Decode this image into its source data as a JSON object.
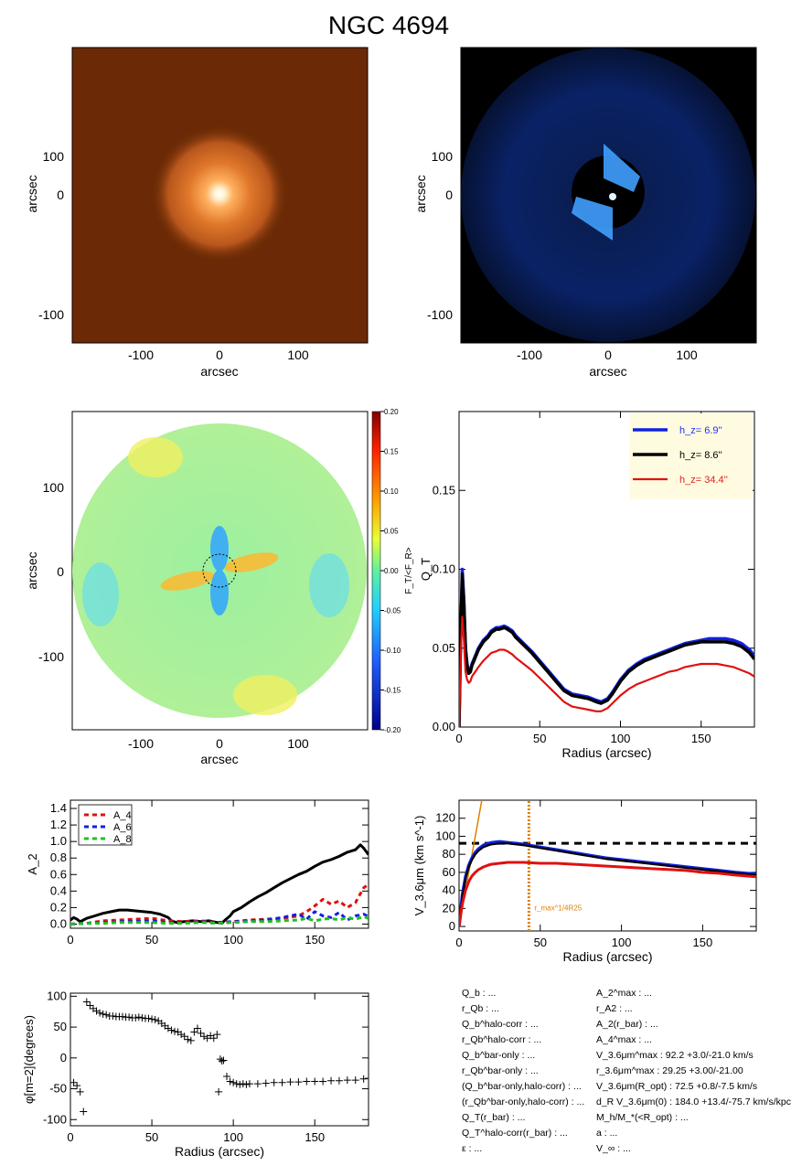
{
  "title": "NGC 4694",
  "panels": {
    "image1": {
      "xlabel": "arcsec",
      "ylabel": "arcsec",
      "xticks": [
        "-100",
        "0",
        "100"
      ],
      "yticks": [
        "100",
        "0",
        "-100"
      ]
    },
    "image2": {
      "xlabel": "arcsec",
      "ylabel": "arcsec",
      "xticks": [
        "-100",
        "0",
        "100"
      ],
      "yticks": [
        "100",
        "0",
        "-100"
      ]
    },
    "map": {
      "xlabel": "arcsec",
      "ylabel": "arcsec",
      "xticks": [
        "-100",
        "0",
        "100"
      ],
      "yticks": [
        "100",
        "0",
        "-100"
      ],
      "colorbar_ticks": [
        "0.20",
        "0.15",
        "0.10",
        "0.05",
        "0.00",
        "-0.05",
        "-0.10",
        "-0.15",
        "-0.20"
      ],
      "colorbar_label": "F_T/<F_R>"
    }
  },
  "params_left": [
    "Q_b : ...",
    "r_Qb : ...",
    "Q_b^halo-corr : ...",
    "r_Qb^halo-corr : ...",
    "Q_b^bar-only : ...",
    "r_Qb^bar-only : ...",
    "(Q_b^bar-only,halo-corr) : ...",
    "(r_Qb^bar-only,halo-corr) : ...",
    "Q_T(r_bar) : ...",
    "Q_T^halo-corr(r_bar) : ...",
    "ε : ..."
  ],
  "params_right": [
    "A_2^max : ...",
    "r_A2 : ...",
    "A_2(r_bar) : ...",
    "A_4^max : ...",
    "V_3.6μm^max : 92.2 +3.0/-21.0 km/s",
    "r_3.6μm^max : 29.25 +3.00/-21.00",
    "V_3.6μm(R_opt) : 72.5 +0.8/-7.5 km/s",
    "d_R V_3.6μm(0) : 184.0 +13.4/-75.7 km/s/kpc",
    "M_h/M_*(<R_opt) : ...",
    "a : ...",
    "V_∞ : ..."
  ],
  "chart_data": [
    {
      "type": "line",
      "title": "",
      "xlabel": "Radius (arcsec)",
      "ylabel": "Q_T",
      "xlim": [
        0,
        183
      ],
      "ylim": [
        0,
        0.2
      ],
      "xticks": [
        0,
        50,
        100,
        150
      ],
      "yticks": [
        0.0,
        0.05,
        0.1,
        0.15
      ],
      "legend": "top-right",
      "series": [
        {
          "name": "h_z= 6.9''",
          "color": "#1020e0",
          "width": 3.5,
          "label_color": "#2030ff",
          "x": [
            0,
            1,
            2,
            3,
            4,
            5,
            6,
            7,
            8,
            10,
            12,
            15,
            18,
            20,
            23,
            25,
            28,
            30,
            33,
            35,
            40,
            45,
            50,
            55,
            60,
            65,
            70,
            75,
            80,
            85,
            88,
            92,
            95,
            100,
            105,
            110,
            115,
            120,
            125,
            130,
            135,
            140,
            145,
            150,
            155,
            160,
            165,
            170,
            175,
            180,
            183
          ],
          "y": [
            0,
            0.06,
            0.1,
            0.08,
            0.05,
            0.04,
            0.035,
            0.036,
            0.04,
            0.045,
            0.05,
            0.055,
            0.058,
            0.061,
            0.063,
            0.063,
            0.064,
            0.063,
            0.061,
            0.058,
            0.053,
            0.048,
            0.042,
            0.036,
            0.03,
            0.024,
            0.021,
            0.02,
            0.019,
            0.017,
            0.016,
            0.018,
            0.022,
            0.03,
            0.036,
            0.04,
            0.043,
            0.045,
            0.047,
            0.049,
            0.051,
            0.053,
            0.054,
            0.055,
            0.056,
            0.056,
            0.056,
            0.055,
            0.053,
            0.049,
            0.045
          ]
        },
        {
          "name": "h_z=  8.6''",
          "color": "#000000",
          "width": 3.5,
          "label_color": "#000000",
          "x": [
            0,
            1,
            2,
            3,
            4,
            5,
            6,
            7,
            8,
            10,
            12,
            15,
            18,
            20,
            23,
            25,
            28,
            30,
            33,
            35,
            40,
            45,
            50,
            55,
            60,
            65,
            70,
            75,
            80,
            85,
            88,
            92,
            95,
            100,
            105,
            110,
            115,
            120,
            125,
            130,
            135,
            140,
            145,
            150,
            155,
            160,
            165,
            170,
            175,
            180,
            183
          ],
          "y": [
            0,
            0.058,
            0.097,
            0.078,
            0.048,
            0.038,
            0.034,
            0.035,
            0.039,
            0.044,
            0.049,
            0.054,
            0.057,
            0.06,
            0.062,
            0.062,
            0.063,
            0.062,
            0.06,
            0.057,
            0.052,
            0.047,
            0.041,
            0.035,
            0.029,
            0.023,
            0.02,
            0.019,
            0.018,
            0.016,
            0.015,
            0.017,
            0.021,
            0.029,
            0.035,
            0.039,
            0.042,
            0.044,
            0.046,
            0.048,
            0.05,
            0.052,
            0.053,
            0.054,
            0.054,
            0.054,
            0.054,
            0.053,
            0.051,
            0.047,
            0.043
          ]
        },
        {
          "name": "h_z= 34.4''",
          "color": "#e01010",
          "width": 2.2,
          "label_color": "#e02020",
          "x": [
            0,
            1,
            2,
            3,
            4,
            5,
            6,
            7,
            8,
            10,
            12,
            15,
            18,
            20,
            23,
            25,
            28,
            30,
            33,
            35,
            40,
            45,
            50,
            55,
            60,
            65,
            70,
            75,
            80,
            85,
            88,
            92,
            95,
            100,
            105,
            110,
            115,
            120,
            125,
            130,
            135,
            140,
            145,
            150,
            155,
            160,
            165,
            170,
            175,
            180,
            183
          ],
          "y": [
            0,
            0.045,
            0.07,
            0.055,
            0.035,
            0.03,
            0.028,
            0.029,
            0.032,
            0.035,
            0.038,
            0.042,
            0.045,
            0.047,
            0.048,
            0.049,
            0.049,
            0.048,
            0.046,
            0.044,
            0.04,
            0.036,
            0.031,
            0.026,
            0.021,
            0.016,
            0.013,
            0.012,
            0.011,
            0.01,
            0.01,
            0.012,
            0.015,
            0.02,
            0.024,
            0.027,
            0.029,
            0.031,
            0.033,
            0.035,
            0.036,
            0.038,
            0.039,
            0.04,
            0.04,
            0.04,
            0.039,
            0.038,
            0.036,
            0.034,
            0.032
          ]
        }
      ]
    },
    {
      "type": "line",
      "title": "",
      "xlabel": "",
      "ylabel": "A_2",
      "xlim": [
        0,
        183
      ],
      "ylim": [
        -0.05,
        1.5
      ],
      "xticks": [
        0,
        50,
        100,
        150
      ],
      "yticks": [
        0.0,
        0.2,
        0.4,
        0.6,
        0.8,
        1.0,
        1.2,
        1.4
      ],
      "legend": "top-left",
      "series": [
        {
          "name": "A_2",
          "color": "#000000",
          "width": 3,
          "dash": "",
          "x": [
            0,
            2,
            4,
            6,
            8,
            10,
            15,
            20,
            25,
            30,
            35,
            40,
            45,
            50,
            55,
            60,
            62,
            65,
            70,
            75,
            80,
            85,
            90,
            93,
            95,
            98,
            100,
            105,
            110,
            115,
            120,
            125,
            130,
            135,
            140,
            145,
            150,
            155,
            160,
            165,
            170,
            175,
            178,
            180,
            183
          ],
          "y": [
            0.05,
            0.08,
            0.06,
            0.03,
            0.05,
            0.07,
            0.1,
            0.13,
            0.15,
            0.17,
            0.17,
            0.16,
            0.15,
            0.14,
            0.12,
            0.08,
            0.04,
            0.02,
            0.03,
            0.04,
            0.03,
            0.04,
            0.02,
            0.01,
            0.05,
            0.1,
            0.15,
            0.2,
            0.27,
            0.33,
            0.38,
            0.44,
            0.5,
            0.55,
            0.6,
            0.64,
            0.7,
            0.75,
            0.78,
            0.82,
            0.87,
            0.9,
            0.96,
            0.92,
            0.84
          ]
        },
        {
          "name": "A_4",
          "color": "#e01010",
          "width": 3,
          "dash": "5,4",
          "x": [
            0,
            10,
            20,
            30,
            40,
            50,
            60,
            70,
            80,
            90,
            100,
            110,
            120,
            130,
            140,
            145,
            150,
            155,
            160,
            165,
            170,
            175,
            180,
            183
          ],
          "y": [
            0.0,
            0.01,
            0.04,
            0.05,
            0.06,
            0.07,
            0.04,
            0.03,
            0.04,
            0.02,
            0.03,
            0.05,
            0.06,
            0.07,
            0.1,
            0.15,
            0.22,
            0.3,
            0.24,
            0.28,
            0.2,
            0.26,
            0.44,
            0.48
          ]
        },
        {
          "name": "A_6",
          "color": "#1020e0",
          "width": 3,
          "dash": "5,4",
          "x": [
            0,
            10,
            20,
            30,
            40,
            50,
            60,
            70,
            80,
            90,
            100,
            110,
            120,
            130,
            140,
            145,
            150,
            155,
            160,
            165,
            170,
            175,
            180,
            183
          ],
          "y": [
            0.0,
            0.01,
            0.02,
            0.03,
            0.03,
            0.04,
            0.02,
            0.02,
            0.03,
            0.02,
            0.03,
            0.04,
            0.05,
            0.08,
            0.12,
            0.06,
            0.15,
            0.1,
            0.08,
            0.14,
            0.05,
            0.1,
            0.12,
            0.09
          ]
        },
        {
          "name": "A_8",
          "color": "#20c020",
          "width": 3,
          "dash": "5,4",
          "x": [
            0,
            10,
            20,
            30,
            40,
            50,
            60,
            70,
            80,
            90,
            100,
            110,
            120,
            130,
            140,
            145,
            150,
            155,
            160,
            165,
            170,
            175,
            180,
            183
          ],
          "y": [
            0.0,
            0.01,
            0.01,
            0.02,
            0.02,
            0.02,
            0.01,
            0.01,
            0.02,
            0.01,
            0.02,
            0.03,
            0.03,
            0.04,
            0.05,
            0.07,
            0.04,
            0.06,
            0.07,
            0.05,
            0.08,
            0.06,
            0.09,
            0.07
          ]
        }
      ]
    },
    {
      "type": "line",
      "title": "",
      "xlabel": "Radius (arcsec)",
      "ylabel": "V_3.6μm (km s^-1)",
      "xlim": [
        0,
        183
      ],
      "ylim": [
        -5,
        140
      ],
      "xticks": [
        0,
        50,
        100,
        150
      ],
      "yticks": [
        0,
        20,
        40,
        60,
        80,
        100,
        120
      ],
      "annotations": {
        "vmax_line": 92.2,
        "rmax": 43,
        "rmax_label": "r_max^1/4R25"
      },
      "series": [
        {
          "name": "blue",
          "color": "#1020e0",
          "width": 3.5,
          "x": [
            0,
            2,
            4,
            6,
            8,
            10,
            12,
            15,
            18,
            20,
            25,
            30,
            35,
            40,
            50,
            60,
            70,
            80,
            90,
            100,
            110,
            120,
            130,
            140,
            150,
            160,
            170,
            183
          ],
          "y": [
            0,
            35,
            55,
            68,
            76,
            82,
            86,
            90,
            92,
            93,
            94,
            93,
            92,
            91,
            88,
            85,
            82,
            79,
            76,
            74,
            72,
            70,
            68,
            66,
            64,
            62,
            60,
            58
          ]
        },
        {
          "name": "black",
          "color": "#000000",
          "width": 2.2,
          "x": [
            0,
            2,
            4,
            6,
            8,
            10,
            12,
            15,
            18,
            20,
            25,
            30,
            35,
            40,
            50,
            60,
            70,
            80,
            90,
            100,
            110,
            120,
            130,
            140,
            150,
            160,
            170,
            183
          ],
          "y": [
            0,
            33,
            53,
            66,
            74,
            80,
            84,
            88,
            90,
            91,
            92,
            92,
            91,
            90,
            87,
            84,
            81,
            78,
            75,
            73,
            71,
            69,
            67,
            65,
            63,
            61,
            59,
            57
          ]
        },
        {
          "name": "red",
          "color": "#e01010",
          "width": 3,
          "x": [
            0,
            2,
            4,
            6,
            8,
            10,
            12,
            15,
            18,
            20,
            25,
            30,
            35,
            40,
            50,
            60,
            70,
            80,
            90,
            100,
            110,
            120,
            130,
            140,
            150,
            160,
            170,
            183
          ],
          "y": [
            0,
            25,
            40,
            50,
            56,
            60,
            63,
            66,
            68,
            69,
            70,
            71,
            71,
            71,
            70,
            70,
            69,
            68,
            67,
            66,
            65,
            64,
            63,
            62,
            60,
            59,
            57,
            55
          ]
        }
      ]
    },
    {
      "type": "scatter",
      "title": "",
      "xlabel": "Radius (arcsec)",
      "ylabel": "φ[m=2](degrees)",
      "xlim": [
        0,
        183
      ],
      "ylim": [
        -110,
        105
      ],
      "xticks": [
        0,
        50,
        100,
        150
      ],
      "yticks": [
        -100,
        -50,
        0,
        50,
        100
      ],
      "series": [
        {
          "name": "phi",
          "marker": "+",
          "color": "#000000",
          "x": [
            2,
            4,
            6,
            8,
            10,
            12,
            14,
            16,
            18,
            20,
            22,
            24,
            26,
            28,
            30,
            32,
            34,
            36,
            38,
            40,
            42,
            44,
            46,
            48,
            50,
            52,
            54,
            56,
            58,
            60,
            62,
            64,
            66,
            68,
            70,
            72,
            74,
            76,
            78,
            80,
            82,
            84,
            86,
            88,
            90,
            91,
            92,
            93,
            94,
            96,
            98,
            100,
            102,
            104,
            106,
            108,
            110,
            115,
            120,
            125,
            130,
            135,
            140,
            145,
            150,
            155,
            160,
            165,
            170,
            175,
            180,
            183
          ],
          "y": [
            -40,
            -45,
            -55,
            -87,
            91,
            85,
            80,
            76,
            73,
            71,
            70,
            68,
            68,
            67,
            67,
            67,
            66,
            66,
            65,
            65,
            66,
            65,
            64,
            64,
            63,
            62,
            60,
            56,
            52,
            48,
            45,
            43,
            42,
            38,
            35,
            30,
            28,
            42,
            48,
            40,
            35,
            32,
            36,
            32,
            38,
            -55,
            -2,
            -5,
            -4,
            -30,
            -38,
            -40,
            -42,
            -43,
            -42,
            -43,
            -42,
            -42,
            -41,
            -40,
            -40,
            -39,
            -39,
            -38,
            -38,
            -38,
            -37,
            -37,
            -36,
            -36,
            -34,
            -33
          ]
        }
      ]
    }
  ]
}
